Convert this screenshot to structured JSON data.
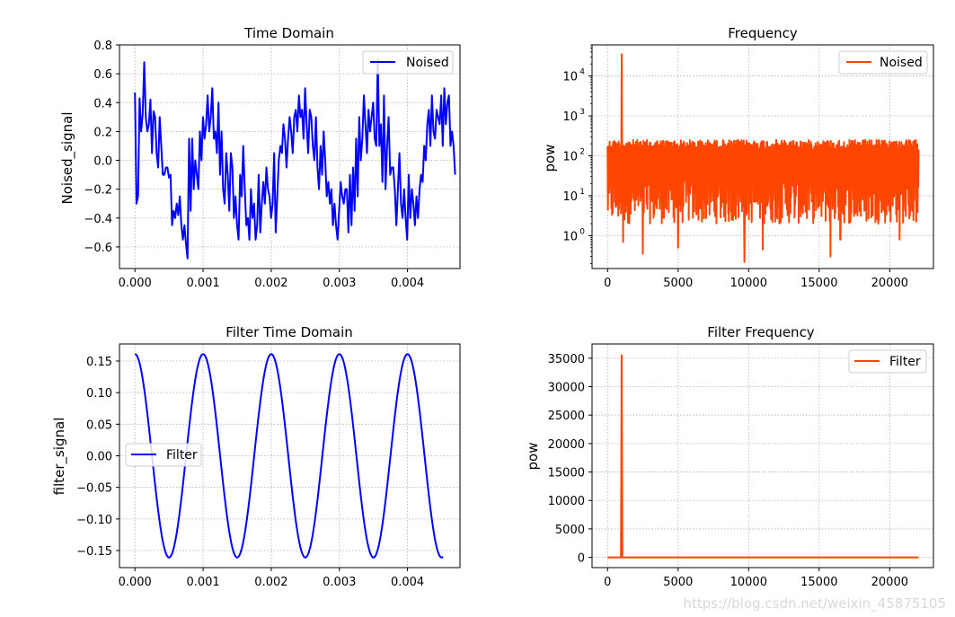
{
  "chart_data": [
    {
      "type": "line",
      "title": "Time Domain",
      "xlabel": "",
      "ylabel": "Noised_signal",
      "xlim": [
        -0.000227,
        0.00477
      ],
      "ylim": [
        -0.75,
        0.8
      ],
      "xticks": [
        0.0,
        0.001,
        0.002,
        0.003,
        0.004
      ],
      "xtick_labels": [
        "0.000",
        "0.001",
        "0.002",
        "0.003",
        "0.004"
      ],
      "yticks": [
        -0.6,
        -0.4,
        -0.2,
        0.0,
        0.2,
        0.4,
        0.6,
        0.8
      ],
      "ytick_labels": [
        "−0.6",
        "−0.4",
        "−0.2",
        "0.0",
        "0.2",
        "0.4",
        "0.6",
        "0.8"
      ],
      "grid": true,
      "legend": "upper right",
      "series": [
        {
          "name": "Noised",
          "color": "#0000ff",
          "x_start": 0.0,
          "x_step": 2.27e-05,
          "y": [
            0.47,
            -0.3,
            -0.25,
            0.43,
            0.2,
            0.32,
            0.68,
            0.3,
            0.2,
            0.25,
            0.42,
            0.05,
            0.34,
            0.3,
            0.05,
            -0.05,
            0.3,
            0.1,
            -0.1,
            -0.1,
            -0.05,
            -0.05,
            -0.12,
            -0.1,
            -0.45,
            -0.35,
            -0.4,
            -0.3,
            -0.38,
            -0.25,
            -0.45,
            -0.55,
            -0.45,
            -0.58,
            -0.68,
            0.15,
            -0.35,
            0.15,
            -0.2,
            0.0,
            -0.1,
            -0.2,
            0.2,
            0.0,
            0.3,
            0.15,
            0.25,
            0.45,
            0.2,
            0.3,
            0.5,
            0.15,
            0.2,
            0.05,
            0.4,
            -0.1,
            0.2,
            -0.2,
            -0.3,
            0.05,
            -0.1,
            -0.35,
            0.05,
            -0.05,
            -0.4,
            -0.25,
            -0.45,
            -0.55,
            -0.1,
            -0.25,
            0.1,
            -0.2,
            -0.45,
            -0.4,
            -0.55,
            -0.2,
            -0.4,
            -0.3,
            -0.55,
            -0.45,
            -0.1,
            -0.5,
            -0.3,
            -0.15,
            -0.3,
            -0.05,
            -0.2,
            -0.25,
            -0.4,
            -0.3,
            0.05,
            -0.5,
            -0.25,
            0.0,
            0.1,
            0.05,
            0.25,
            0.15,
            -0.05,
            0.15,
            0.3,
            0.2,
            0.05,
            0.3,
            0.35,
            0.2,
            0.45,
            0.3,
            0.35,
            0.15,
            0.5,
            0.25,
            0.05,
            0.35,
            0.3,
            0.1,
            0.0,
            0.3,
            -0.05,
            -0.2,
            0.1,
            -0.1,
            0.2,
            0.0,
            -0.25,
            -0.15,
            -0.3,
            -0.2,
            -0.45,
            -0.3,
            -0.45,
            -0.55,
            -0.35,
            -0.15,
            -0.25,
            -0.3,
            -0.2,
            -0.2,
            -0.5,
            -0.1,
            -0.45,
            -0.05,
            -0.35,
            0.15,
            -0.25,
            0.3,
            0.0,
            0.15,
            0.45,
            0.25,
            0.05,
            0.35,
            0.2,
            0.3,
            0.4,
            0.15,
            0.1,
            0.7,
            0.1,
            0.25,
            -0.15,
            0.45,
            -0.2,
            0.1,
            0.3,
            -0.1,
            -0.05,
            -0.05,
            -0.2,
            -0.45,
            -0.2,
            0.05,
            -0.3,
            -0.4,
            -0.2,
            -0.4,
            -0.55,
            -0.1,
            -0.4,
            -0.2,
            -0.3,
            -0.45,
            -0.25,
            -0.4,
            -0.2,
            -0.1,
            -0.15,
            0.1,
            0.0,
            0.25,
            0.35,
            0.1,
            0.45,
            0.2,
            0.15,
            0.35,
            0.3,
            0.25,
            0.45,
            0.1,
            0.5,
            0.25,
            0.4,
            0.45,
            0.1,
            0.2,
            0.1,
            -0.1
          ]
        }
      ]
    },
    {
      "type": "line",
      "title": "Frequency",
      "xlabel": "",
      "ylabel": "pow",
      "yscale": "log",
      "xlim": [
        -1100,
        23100
      ],
      "ylim": [
        0.15,
        60000
      ],
      "xticks": [
        0,
        5000,
        10000,
        15000,
        20000
      ],
      "xtick_labels": [
        "0",
        "5000",
        "10000",
        "15000",
        "20000"
      ],
      "yticks": [
        1,
        10,
        100,
        1000,
        10000
      ],
      "ytick_labels": [
        "10",
        "10",
        "10",
        "10",
        "10"
      ],
      "ytick_exponents": [
        "0",
        "1",
        "2",
        "3",
        "4"
      ],
      "grid": true,
      "legend": "upper right",
      "series": [
        {
          "name": "Noised",
          "color": "#ff4500",
          "x_range": [
            0,
            22050
          ],
          "noise_band": [
            2,
            250
          ],
          "peak": {
            "x": 1000,
            "y": 35000
          },
          "dips": [
            {
              "x": 1100,
              "y": 0.7
            },
            {
              "x": 2500,
              "y": 0.35
            },
            {
              "x": 5000,
              "y": 0.5
            },
            {
              "x": 9700,
              "y": 0.22
            },
            {
              "x": 11000,
              "y": 0.45
            },
            {
              "x": 15800,
              "y": 0.3
            },
            {
              "x": 16500,
              "y": 0.8
            },
            {
              "x": 20700,
              "y": 0.8
            }
          ]
        }
      ]
    },
    {
      "type": "line",
      "title": "Filter Time Domain",
      "xlabel": "",
      "ylabel": "filter_signal",
      "xlim": [
        -0.000227,
        0.00477
      ],
      "ylim": [
        -0.177,
        0.177
      ],
      "xticks": [
        0.0,
        0.001,
        0.002,
        0.003,
        0.004
      ],
      "xtick_labels": [
        "0.000",
        "0.001",
        "0.002",
        "0.003",
        "0.004"
      ],
      "yticks": [
        -0.15,
        -0.1,
        -0.05,
        0.0,
        0.05,
        0.1,
        0.15
      ],
      "ytick_labels": [
        "−0.15",
        "−0.10",
        "−0.05",
        "0.00",
        "0.05",
        "0.10",
        "0.15"
      ],
      "grid": true,
      "legend": "center left",
      "series": [
        {
          "name": "Filter",
          "color": "#0000ff",
          "function": "cosine",
          "amplitude": 0.161,
          "frequency": 1000,
          "x_range": [
            0.0,
            0.00452
          ]
        }
      ]
    },
    {
      "type": "line",
      "title": "Filter Frequency",
      "xlabel": "",
      "ylabel": "pow",
      "xlim": [
        -1100,
        23100
      ],
      "ylim": [
        -1800,
        37500
      ],
      "xticks": [
        0,
        5000,
        10000,
        15000,
        20000
      ],
      "xtick_labels": [
        "0",
        "5000",
        "10000",
        "15000",
        "20000"
      ],
      "yticks": [
        0,
        5000,
        10000,
        15000,
        20000,
        25000,
        30000,
        35000
      ],
      "ytick_labels": [
        "0",
        "5000",
        "10000",
        "15000",
        "20000",
        "25000",
        "30000",
        "35000"
      ],
      "grid": true,
      "legend": "upper right",
      "series": [
        {
          "name": "Filter",
          "color": "#ff4500",
          "x": [
            0,
            950,
            1000,
            1050,
            22050
          ],
          "y": [
            0,
            0,
            35500,
            0,
            0
          ]
        }
      ]
    }
  ],
  "watermark": "https://blog.csdn.net/weixin_45875105"
}
